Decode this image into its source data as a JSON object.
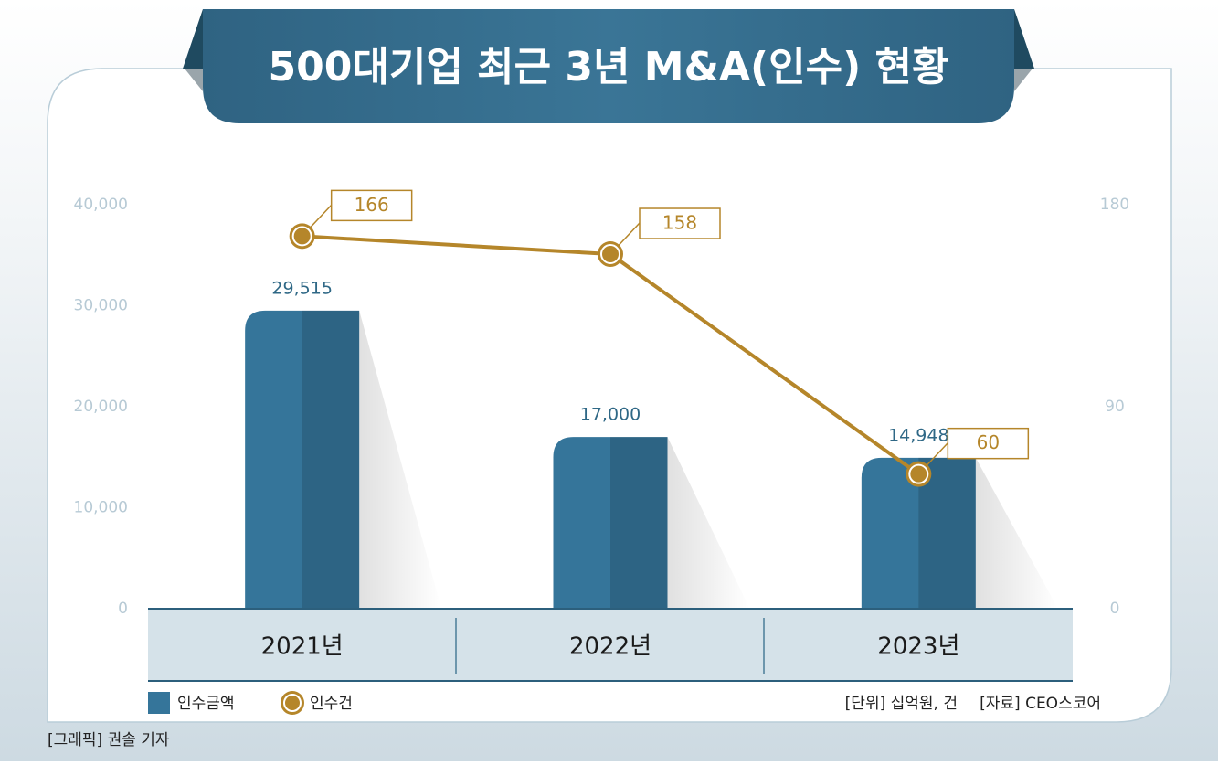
{
  "chart_data": {
    "type": "bar",
    "title": "500대기업 최근 3년 M&A(인수) 현황",
    "categories": [
      "2021년",
      "2022년",
      "2023년"
    ],
    "series": [
      {
        "name": "인수금액",
        "type": "bar",
        "color": "#35759a",
        "values": [
          29515,
          17000,
          14948
        ],
        "value_labels": [
          "29,515",
          "17,000",
          "14,948"
        ]
      },
      {
        "name": "인수건",
        "type": "line",
        "axis": "y2",
        "color": "#b5862a",
        "values": [
          166,
          158,
          60
        ]
      }
    ],
    "ylim": [
      0,
      40000
    ],
    "yticks": [
      0,
      {
        "value": 10000,
        "label": "10,000"
      },
      {
        "value": 20000,
        "label": "20,000"
      },
      {
        "value": 30000,
        "label": "30,000"
      },
      {
        "value": 40000,
        "label": "40,000"
      }
    ],
    "y2lim": [
      0,
      180
    ],
    "y2ticks": [
      0,
      90,
      180
    ],
    "unit_note": "[단위] 십억원, 건",
    "source": "[자료] CEO스코어",
    "credit": "[그래픽] 권솔 기자"
  }
}
